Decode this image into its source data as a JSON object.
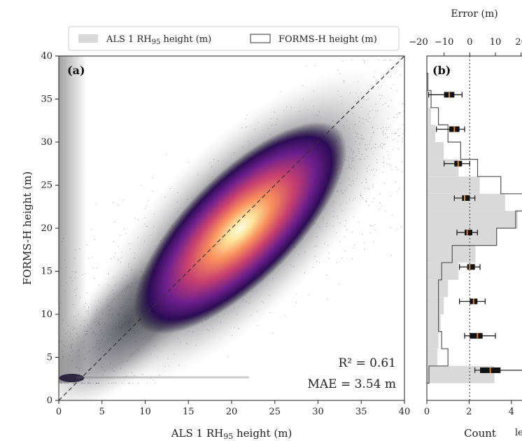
{
  "chart_data": [
    {
      "type": "scatter",
      "panel_label": "(a)",
      "xlabel": "ALS 1 RH",
      "xlabel_sub": "95",
      "xlabel_tail": " height (m)",
      "ylabel": "FORMS-H height (m)",
      "xlim": [
        0,
        40
      ],
      "ylim": [
        0,
        40
      ],
      "xticks": [
        "0",
        "5",
        "10",
        "15",
        "20",
        "25",
        "30",
        "35",
        "40"
      ],
      "yticks": [
        "0",
        "5",
        "10",
        "15",
        "20",
        "25",
        "30",
        "35",
        "40"
      ],
      "annotations": [
        "R² = 0.61",
        "MAE = 3.54 m"
      ],
      "legend": {
        "position": "top",
        "entries": [
          {
            "label": "ALS 1 RH",
            "sub": "95",
            "tail": " height (m)",
            "style": "filled",
            "color": "#d9d9d9"
          },
          {
            "label": "FORMS-H height (m)",
            "style": "step",
            "color": "#555555"
          }
        ]
      },
      "density_center": [
        21,
        20
      ],
      "one_to_one_line": true
    },
    {
      "type": "bar",
      "panel_label": "(b)",
      "top_axis_label": "Error (m)",
      "top_ticks": [
        "−20",
        "−10",
        "0",
        "10",
        "20"
      ],
      "top_xlim": [
        -20,
        22
      ],
      "bottom_ticks": [
        "0",
        "2",
        "4"
      ],
      "bottom_xlabel": "Count",
      "bottom_xlabel_extra": "le",
      "bottom_xlim": [
        0,
        4.5
      ],
      "ylim": [
        0,
        40
      ],
      "bins_height": [
        2,
        4,
        6,
        8,
        10,
        12,
        14,
        16,
        18,
        20,
        22,
        24,
        26,
        28,
        30,
        32,
        34,
        36
      ],
      "als_counts": [
        3.2,
        0.5,
        0.55,
        0.65,
        0.8,
        1.0,
        1.5,
        2.3,
        3.3,
        4.3,
        3.7,
        2.5,
        1.5,
        0.8,
        0.4,
        0.2,
        0.08,
        0.02
      ],
      "forms_counts": [
        0.1,
        1.0,
        0.7,
        0.55,
        0.55,
        0.55,
        0.7,
        1.2,
        3.3,
        4.2,
        4.6,
        3.5,
        2.4,
        1.6,
        1.0,
        0.55,
        0.2,
        0.05
      ],
      "error_boxes": [
        {
          "height": 3.5,
          "whisker_lo": 2,
          "q1": 4,
          "median": 8,
          "q3": 12,
          "whisker_hi": 22
        },
        {
          "height": 7.5,
          "whisker_lo": -2,
          "q1": 0,
          "median": 3,
          "q3": 5,
          "whisker_hi": 10
        },
        {
          "height": 11.5,
          "whisker_lo": -4,
          "q1": 0,
          "median": 1.5,
          "q3": 3,
          "whisker_hi": 6
        },
        {
          "height": 15.5,
          "whisker_lo": -4,
          "q1": -1,
          "median": 0,
          "q3": 2,
          "whisker_hi": 4
        },
        {
          "height": 19.5,
          "whisker_lo": -5,
          "q1": -2,
          "median": -1,
          "q3": 1,
          "whisker_hi": 3
        },
        {
          "height": 23.5,
          "whisker_lo": -6,
          "q1": -3,
          "median": -2,
          "q3": 0,
          "whisker_hi": 2
        },
        {
          "height": 27.5,
          "whisker_lo": -10,
          "q1": -6,
          "median": -4.5,
          "q3": -3,
          "whisker_hi": 0
        },
        {
          "height": 31.5,
          "whisker_lo": -13,
          "q1": -8,
          "median": -6,
          "q3": -4,
          "whisker_hi": -2
        },
        {
          "height": 35.5,
          "whisker_lo": -16,
          "q1": -10,
          "median": -8,
          "q3": -6,
          "whisker_hi": -3
        }
      ],
      "zero_line": true
    }
  ]
}
